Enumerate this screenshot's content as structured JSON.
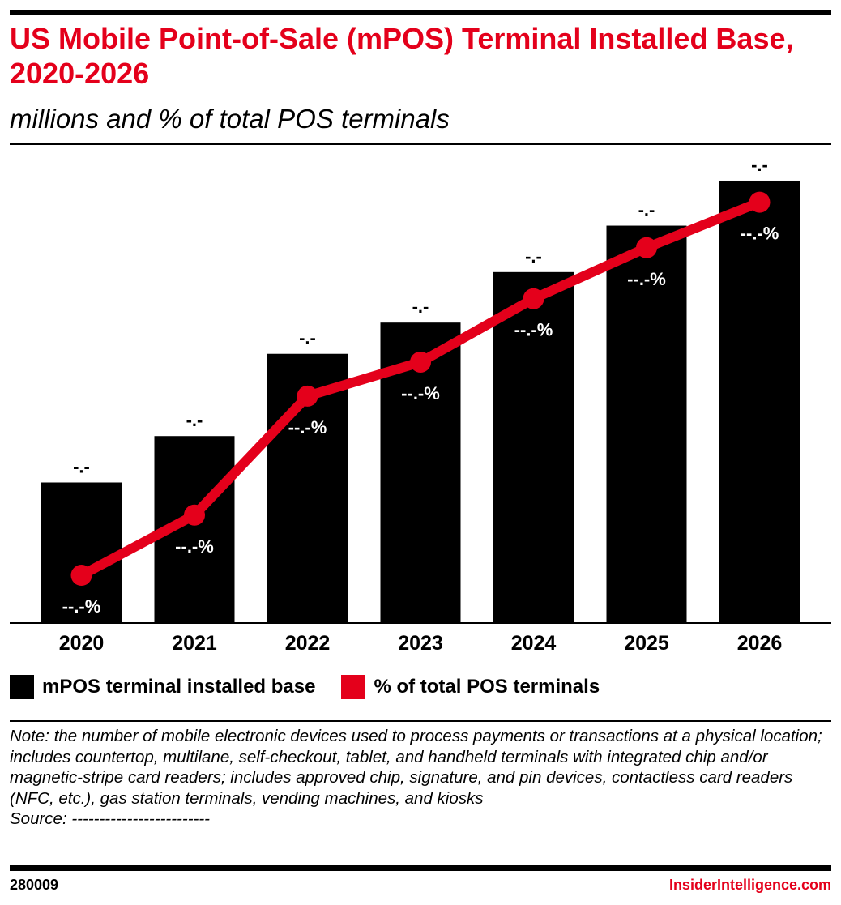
{
  "header": {
    "title": "US Mobile Point-of-Sale (mPOS) Terminal Installed Base, 2020-2026",
    "subtitle": "millions and % of total POS terminals"
  },
  "chart_data": {
    "type": "bar",
    "categories": [
      "2020",
      "2021",
      "2022",
      "2023",
      "2024",
      "2025",
      "2026"
    ],
    "series": [
      {
        "name": "mPOS terminal installed base",
        "type": "bar",
        "values": [
          30.6,
          40.7,
          58.6,
          65.4,
          76.4,
          86.5,
          96.3
        ],
        "labels": [
          "-.-",
          "-.-",
          "-.-",
          "-.-",
          "-.-",
          "-.-",
          "-.-"
        ],
        "color": "#000000"
      },
      {
        "name": "% of total POS terminals",
        "type": "line",
        "values": [
          10.4,
          23.5,
          49.4,
          56.8,
          70.6,
          81.7,
          91.6
        ],
        "labels": [
          "--.-%",
          "--.-%",
          "--.-%",
          "--.-%",
          "--.-%",
          "--.-%",
          "--.-%"
        ],
        "color": "#e4001b"
      }
    ],
    "ylim": [
      0,
      100
    ],
    "grid": false,
    "legend": "bottom-left"
  },
  "legend": {
    "items": [
      {
        "label": "mPOS terminal installed base",
        "color": "#000000"
      },
      {
        "label": "% of total POS terminals",
        "color": "#e4001b"
      }
    ]
  },
  "note": {
    "text": "Note: the number of mobile electronic devices used to process payments or transactions at a physical location; includes countertop, multilane, self-checkout, tablet, and handheld terminals with integrated chip and/or magnetic-stripe card readers; includes approved chip, signature, and pin devices, contactless card readers (NFC, etc.), gas station terminals, vending machines, and kiosks",
    "source": "Source: -------------------------"
  },
  "footer": {
    "id": "280009",
    "brand": "InsiderIntelligence.com"
  },
  "colors": {
    "accent": "#e4001b",
    "bar": "#000000"
  }
}
